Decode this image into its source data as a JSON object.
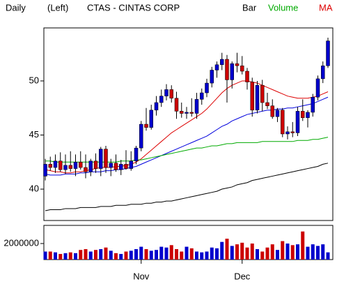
{
  "chart_data": {
    "type": "candlestick",
    "title": "CTAS - CINTAS CORP",
    "header": [
      "Daily",
      "(Left)"
    ],
    "legend": [
      {
        "name": "Bar",
        "color": "#000000"
      },
      {
        "name": "Volume",
        "color": "#00aa00"
      },
      {
        "name": "MA",
        "color": "#dd0000"
      }
    ],
    "categories": [
      null,
      null,
      null,
      null,
      null,
      null,
      null,
      null,
      null,
      null,
      null,
      null,
      null,
      null,
      null,
      null,
      null,
      null,
      null,
      "Nov",
      null,
      null,
      null,
      null,
      null,
      null,
      null,
      null,
      null,
      null,
      null,
      null,
      null,
      null,
      null,
      null,
      null,
      null,
      null,
      "Dec",
      null,
      null,
      null,
      null,
      null,
      null,
      null,
      null,
      null,
      null,
      null,
      null,
      null,
      null,
      null,
      null,
      null
    ],
    "open": [
      41.2,
      42.3,
      42.0,
      42.6,
      41.8,
      42.2,
      41.9,
      42.5,
      42.0,
      41.6,
      42.6,
      41.9,
      43.7,
      42.0,
      42.4,
      41.8,
      42.3,
      41.9,
      42.6,
      43.8,
      46.0,
      45.7,
      47.3,
      48.0,
      48.6,
      49.2,
      48.4,
      47.2,
      47.0,
      47.1,
      47.0,
      48.3,
      48.9,
      49.8,
      51.0,
      51.5,
      52.0,
      50.1,
      51.6,
      51.4,
      50.9,
      49.9,
      47.3,
      49.6,
      48.0,
      47.7,
      46.7,
      47.3,
      45.1,
      45.3,
      45.2,
      47.2,
      46.6,
      47.1,
      48.5,
      50.2,
      51.4
    ],
    "high": [
      42.8,
      43.0,
      43.2,
      43.4,
      43.2,
      43.5,
      43.2,
      43.5,
      43.2,
      42.8,
      43.3,
      43.9,
      44.0,
      42.8,
      43.2,
      42.7,
      43.6,
      43.5,
      44.0,
      46.3,
      47.5,
      47.8,
      48.6,
      49.2,
      49.7,
      49.6,
      49.0,
      48.0,
      47.6,
      48.4,
      48.9,
      49.3,
      50.2,
      51.3,
      51.8,
      52.6,
      52.4,
      51.8,
      52.6,
      52.3,
      51.2,
      50.3,
      50.0,
      50.1,
      48.9,
      48.3,
      47.5,
      47.5,
      45.8,
      46.2,
      47.6,
      48.3,
      47.3,
      48.8,
      50.5,
      51.8,
      54.0
    ],
    "low": [
      40.8,
      41.7,
      41.5,
      41.6,
      41.4,
      41.6,
      41.2,
      41.8,
      41.0,
      41.2,
      41.5,
      41.2,
      41.5,
      41.2,
      41.6,
      41.3,
      41.8,
      41.7,
      42.3,
      43.5,
      45.4,
      45.5,
      46.8,
      47.6,
      48.2,
      48.0,
      46.5,
      46.6,
      46.5,
      46.7,
      46.5,
      47.8,
      48.5,
      49.4,
      50.3,
      51.0,
      48.0,
      49.3,
      50.8,
      50.6,
      49.2,
      46.7,
      47.0,
      47.2,
      47.4,
      46.5,
      46.2,
      44.8,
      44.6,
      44.8,
      44.9,
      46.3,
      45.7,
      46.7,
      48.2,
      49.8,
      51.2
    ],
    "close": [
      42.3,
      42.0,
      42.6,
      41.8,
      42.2,
      41.9,
      42.5,
      42.0,
      41.6,
      42.6,
      41.9,
      43.7,
      42.0,
      42.4,
      41.8,
      42.3,
      41.9,
      42.6,
      43.8,
      46.0,
      45.7,
      47.3,
      48.0,
      48.6,
      49.2,
      48.4,
      47.2,
      47.0,
      47.1,
      47.0,
      48.3,
      48.9,
      49.8,
      51.0,
      51.5,
      52.0,
      50.1,
      51.6,
      51.4,
      50.9,
      49.9,
      47.3,
      49.6,
      48.0,
      47.7,
      46.7,
      47.3,
      45.1,
      45.3,
      45.2,
      47.2,
      46.6,
      47.1,
      48.5,
      50.2,
      51.4,
      53.7
    ],
    "up_color": "#0000cc",
    "down_color": "#cc0000",
    "moving_averages": [
      {
        "color": "#dd0000",
        "values": [
          41.8,
          41.7,
          41.6,
          41.6,
          41.5,
          41.5,
          41.6,
          41.6,
          41.7,
          41.8,
          41.9,
          42.0,
          42.0,
          42.0,
          42.1,
          42.1,
          42.2,
          42.3,
          42.5,
          42.8,
          43.2,
          43.6,
          44.0,
          44.4,
          44.8,
          45.2,
          45.5,
          45.8,
          46.1,
          46.4,
          46.7,
          47.0,
          47.4,
          47.9,
          48.4,
          48.9,
          49.3,
          49.6,
          49.8,
          50.0,
          50.0,
          49.9,
          49.8,
          49.6,
          49.4,
          49.2,
          49.0,
          48.8,
          48.6,
          48.5,
          48.4,
          48.4,
          48.4,
          48.5,
          48.6,
          48.8,
          49.0
        ]
      },
      {
        "color": "#0000dd",
        "values": [
          41.4,
          41.3,
          41.3,
          41.3,
          41.4,
          41.4,
          41.4,
          41.5,
          41.5,
          41.6,
          41.6,
          41.6,
          41.7,
          41.7,
          41.8,
          41.8,
          41.9,
          42.0,
          42.1,
          42.3,
          42.5,
          42.7,
          42.9,
          43.1,
          43.3,
          43.5,
          43.7,
          43.9,
          44.1,
          44.3,
          44.5,
          44.7,
          44.9,
          45.2,
          45.5,
          45.8,
          46.0,
          46.3,
          46.5,
          46.7,
          46.9,
          47.0,
          47.1,
          47.2,
          47.3,
          47.3,
          47.4,
          47.4,
          47.5,
          47.5,
          47.6,
          47.7,
          47.8,
          47.9,
          48.1,
          48.3,
          48.5
        ]
      },
      {
        "color": "#00aa00",
        "values": [
          42.6,
          42.6,
          42.5,
          42.5,
          42.5,
          42.5,
          42.5,
          42.5,
          42.5,
          42.5,
          42.5,
          42.5,
          42.5,
          42.5,
          42.5,
          42.6,
          42.6,
          42.6,
          42.7,
          42.7,
          42.8,
          42.9,
          43.0,
          43.1,
          43.2,
          43.3,
          43.4,
          43.5,
          43.6,
          43.7,
          43.8,
          43.8,
          43.9,
          44.0,
          44.0,
          44.1,
          44.2,
          44.2,
          44.3,
          44.3,
          44.3,
          44.3,
          44.3,
          44.4,
          44.4,
          44.4,
          44.4,
          44.4,
          44.4,
          44.4,
          44.5,
          44.5,
          44.5,
          44.6,
          44.6,
          44.7,
          44.8
        ]
      },
      {
        "color": "#000000",
        "values": [
          38.0,
          38.1,
          38.1,
          38.1,
          38.2,
          38.2,
          38.2,
          38.3,
          38.3,
          38.3,
          38.3,
          38.4,
          38.4,
          38.4,
          38.5,
          38.5,
          38.5,
          38.6,
          38.6,
          38.6,
          38.7,
          38.7,
          38.8,
          38.8,
          38.9,
          38.9,
          39.0,
          39.1,
          39.2,
          39.3,
          39.4,
          39.5,
          39.6,
          39.7,
          39.8,
          40.0,
          40.1,
          40.2,
          40.4,
          40.5,
          40.6,
          40.8,
          40.9,
          41.0,
          41.1,
          41.2,
          41.3,
          41.4,
          41.5,
          41.6,
          41.7,
          41.8,
          41.9,
          42.0,
          42.1,
          42.3,
          42.4
        ]
      }
    ],
    "ylim": [
      37.1,
      54.9
    ],
    "yticks": [
      40,
      45,
      50
    ],
    "volume": [
      1000000,
      1000000,
      900000,
      700000,
      800000,
      900000,
      800000,
      1200000,
      1300000,
      1000000,
      1200000,
      1300000,
      1500000,
      1100000,
      800000,
      700000,
      1000000,
      1100000,
      1300000,
      1600000,
      1300000,
      1100000,
      1200000,
      1600000,
      1500000,
      1800000,
      1300000,
      1000000,
      1600000,
      1400000,
      1000000,
      900000,
      1000000,
      1500000,
      1400000,
      2200000,
      2600000,
      1700000,
      1900000,
      2100000,
      1500000,
      2000000,
      1300000,
      1000000,
      1500000,
      1900000,
      1200000,
      2300000,
      2000000,
      1800000,
      1900000,
      3500000,
      1600000,
      1900000,
      1700000,
      1900000,
      900000
    ],
    "volume_ylim": [
      0,
      4260000
    ],
    "volume_yticks": [
      2000000
    ]
  }
}
